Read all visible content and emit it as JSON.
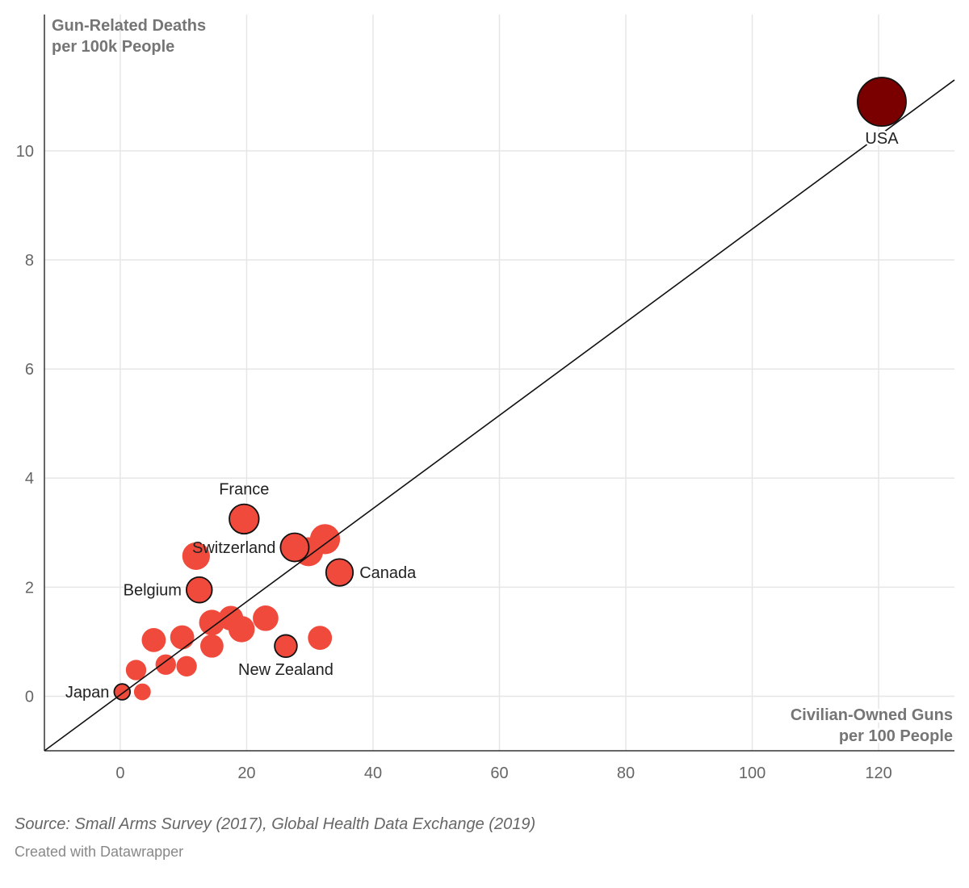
{
  "chart_data": {
    "type": "scatter",
    "xlabel": [
      "Civilian-Owned Guns",
      "per 100 People"
    ],
    "ylabel": [
      "Gun-Related Deaths",
      "per 100k People"
    ],
    "xlim": [
      -12,
      132
    ],
    "ylim": [
      -1,
      12.5
    ],
    "x_ticks": [
      0,
      20,
      40,
      60,
      80,
      100,
      120
    ],
    "y_ticks": [
      0,
      2,
      4,
      6,
      8,
      10
    ],
    "grid": true,
    "trendline": {
      "from": [
        -12,
        -1.0
      ],
      "to": [
        132,
        11.3
      ]
    },
    "colors": {
      "highlight": "#7a0000",
      "point": "#ef4a3c",
      "outline": "#111111",
      "grid": "#e6e6e6",
      "line": "#111111"
    },
    "points": [
      {
        "x": 3.5,
        "y": 0.08,
        "size": 0.15
      },
      {
        "x": 2.5,
        "y": 0.48,
        "size": 0.3
      },
      {
        "x": 7.2,
        "y": 0.58,
        "size": 0.3
      },
      {
        "x": 10.5,
        "y": 0.55,
        "size": 0.3
      },
      {
        "x": 5.3,
        "y": 1.03,
        "size": 0.5
      },
      {
        "x": 9.8,
        "y": 1.08,
        "size": 0.5
      },
      {
        "x": 14.5,
        "y": 0.92,
        "size": 0.45
      },
      {
        "x": 14.5,
        "y": 1.35,
        "size": 0.6
      },
      {
        "x": 17.5,
        "y": 1.43,
        "size": 0.55
      },
      {
        "x": 19.2,
        "y": 1.23,
        "size": 0.65
      },
      {
        "x": 23.0,
        "y": 1.43,
        "size": 0.6
      },
      {
        "x": 31.6,
        "y": 1.07,
        "size": 0.5
      },
      {
        "x": 12.0,
        "y": 2.57,
        "size": 0.75
      },
      {
        "x": 29.8,
        "y": 2.65,
        "size": 0.85
      },
      {
        "x": 32.4,
        "y": 2.88,
        "size": 0.95
      },
      {
        "x": 0.3,
        "y": 0.08,
        "size": 0.12,
        "label": "Japan",
        "label_pos": "left",
        "outlined": true
      },
      {
        "x": 26.2,
        "y": 0.92,
        "size": 0.4,
        "label": "New Zealand",
        "label_pos": "below",
        "outlined": true
      },
      {
        "x": 12.5,
        "y": 1.95,
        "size": 0.6,
        "label": "Belgium",
        "label_pos": "left",
        "outlined": true
      },
      {
        "x": 34.7,
        "y": 2.27,
        "size": 0.7,
        "label": "Canada",
        "label_pos": "right",
        "outlined": true
      },
      {
        "x": 27.6,
        "y": 2.73,
        "size": 0.8,
        "label": "Switzerland",
        "label_pos": "left",
        "outlined": true
      },
      {
        "x": 19.6,
        "y": 3.25,
        "size": 0.9,
        "label": "France",
        "label_pos": "above",
        "outlined": true
      },
      {
        "x": 120.5,
        "y": 10.9,
        "size": 3.2,
        "label": "USA",
        "label_pos": "below",
        "outlined": true,
        "highlight": true
      }
    ]
  },
  "footer": {
    "source": "Source: Small Arms Survey (2017), Global Health Data Exchange (2019)",
    "credit": "Created with Datawrapper"
  }
}
